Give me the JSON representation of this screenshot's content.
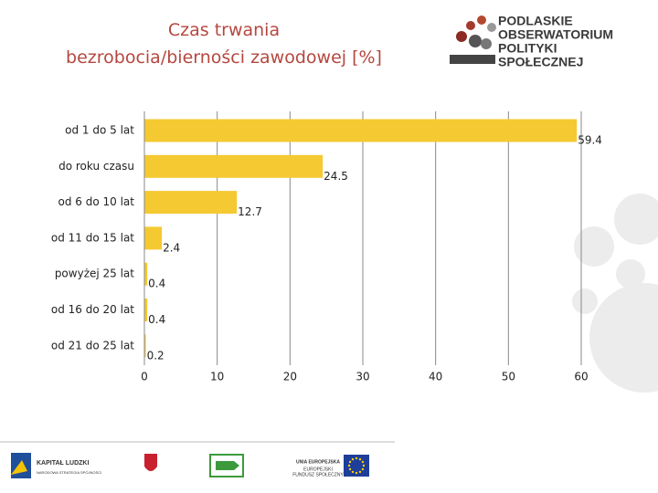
{
  "chart_data": {
    "type": "bar",
    "orientation": "horizontal",
    "title": "Czas trwania\nbezrobocia/bierności zawodowej [%]",
    "categories": [
      "od 1 do 5 lat",
      "do roku czasu",
      "od 6 do 10 lat",
      "od 11 do 15 lat",
      "powyżej 25 lat",
      "od 16 do 20 lat",
      "od 21 do 25 lat"
    ],
    "values": [
      59.4,
      24.5,
      12.7,
      2.4,
      0.4,
      0.4,
      0.2
    ],
    "color": "#f5c932",
    "xlim": [
      0,
      60
    ],
    "xticks": [
      0,
      10,
      20,
      30,
      40,
      50,
      60
    ],
    "grid": true
  },
  "logos": {
    "top": [
      "PODLASKIE",
      "OBSERWATORIUM",
      "POLITYKI",
      "SPOŁECZNEJ"
    ],
    "bottom": [
      "KAPITAŁ LUDZKI",
      "NARODOWA STRATEGIA SPÓJNOŚCI",
      "UNIA EUROPEJSKA",
      "EUROPEJSKI",
      "FUNDUSZ SPOŁECZNY"
    ]
  }
}
